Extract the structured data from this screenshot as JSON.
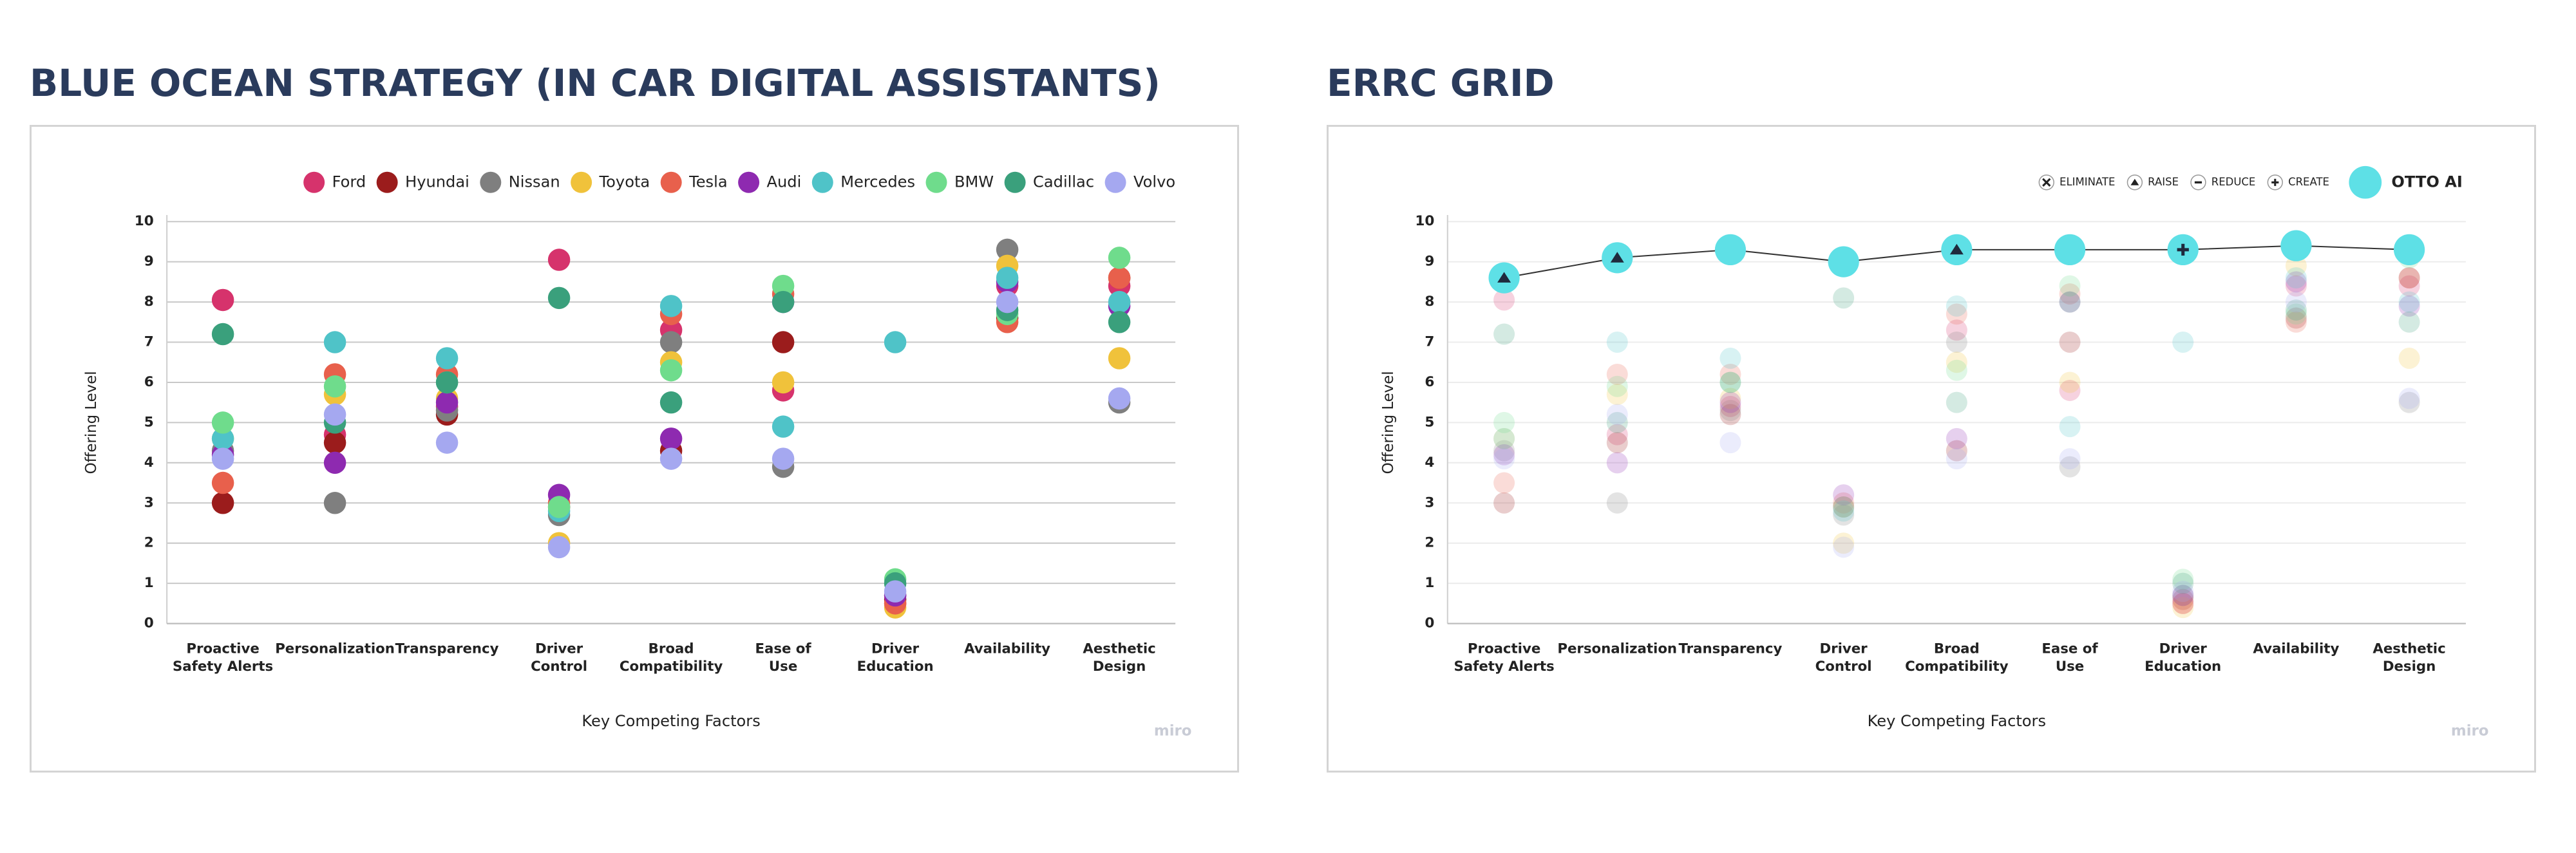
{
  "chart_data": [
    {
      "type": "scatter",
      "title": "BLUE OCEAN STRATEGY (IN CAR DIGITAL ASSISTANTS)",
      "xlabel": "Key Competing Factors",
      "ylabel": "Offering Level",
      "watermark": "miro",
      "categories": [
        "Proactive\nSafety Alerts",
        "Personalization",
        "Transparency",
        "Driver\nControl",
        "Broad\nCompatibility",
        "Ease of\nUse",
        "Driver\nEducation",
        "Availability",
        "Aesthetic\nDesign"
      ],
      "ylim": [
        0,
        10
      ],
      "yticks": [
        0,
        1,
        2,
        3,
        4,
        5,
        6,
        7,
        8,
        9,
        10
      ],
      "grid": true,
      "legend": "top-right",
      "series": [
        {
          "name": "Ford",
          "color": "#d6336c",
          "values": [
            8.05,
            4.7,
            5.4,
            9.05,
            7.3,
            5.8,
            0.5,
            8.4,
            8.4
          ]
        },
        {
          "name": "Hyundai",
          "color": "#9b1c1c",
          "values": [
            3.0,
            4.5,
            5.2,
            2.9,
            4.3,
            7.0,
            0.6,
            7.6,
            8.6
          ]
        },
        {
          "name": "Nissan",
          "color": "#7f7f7f",
          "values": [
            4.3,
            3.0,
            5.3,
            2.7,
            7.0,
            3.9,
            0.7,
            9.3,
            5.5
          ]
        },
        {
          "name": "Toyota",
          "color": "#f0c23b",
          "values": [
            4.6,
            5.7,
            5.6,
            2.0,
            6.5,
            6.0,
            0.4,
            8.9,
            6.6
          ]
        },
        {
          "name": "Tesla",
          "color": "#e8604c",
          "values": [
            3.5,
            6.2,
            6.2,
            3.0,
            7.7,
            8.2,
            0.5,
            7.5,
            8.6
          ]
        },
        {
          "name": "Audi",
          "color": "#8e2ab0",
          "values": [
            4.2,
            4.0,
            5.5,
            3.2,
            4.6,
            8.0,
            0.7,
            8.5,
            7.9
          ]
        },
        {
          "name": "Mercedes",
          "color": "#4fc3c8",
          "values": [
            4.6,
            7.0,
            6.6,
            2.8,
            7.9,
            4.9,
            7.0,
            8.6,
            8.0
          ]
        },
        {
          "name": "BMW",
          "color": "#6fdc8c",
          "values": [
            5.0,
            5.9,
            6.0,
            2.9,
            6.3,
            8.4,
            1.1,
            7.7,
            9.1
          ]
        },
        {
          "name": "Cadillac",
          "color": "#3aa07c",
          "values": [
            7.2,
            5.0,
            6.0,
            8.1,
            5.5,
            8.0,
            1.0,
            7.8,
            7.5
          ]
        },
        {
          "name": "Volvo",
          "color": "#a5a8f0",
          "values": [
            4.1,
            5.2,
            4.5,
            1.9,
            4.1,
            4.1,
            0.8,
            8.0,
            5.6
          ]
        }
      ]
    },
    {
      "type": "scatter",
      "title": "ERRC GRID",
      "xlabel": "Key Competing Factors",
      "ylabel": "Offering Level",
      "watermark": "miro",
      "categories": [
        "Proactive\nSafety Alerts",
        "Personalization",
        "Transparency",
        "Driver\nControl",
        "Broad\nCompatibility",
        "Ease of\nUse",
        "Driver\nEducation",
        "Availability",
        "Aesthetic\nDesign"
      ],
      "ylim": [
        0,
        10
      ],
      "yticks": [
        0,
        1,
        2,
        3,
        4,
        5,
        6,
        7,
        8,
        9,
        10
      ],
      "grid": true,
      "legend": "top-right",
      "faded_competitors": true,
      "action_legend": [
        "ELIMINATE",
        "RAISE",
        "REDUCE",
        "CREATE"
      ],
      "series": [
        {
          "name": "OTTO AI",
          "color": "#5ee0e6",
          "values": [
            8.6,
            9.1,
            9.3,
            9.0,
            9.3,
            9.3,
            9.3,
            9.4,
            9.3
          ],
          "actions": [
            "RAISE",
            "RAISE",
            null,
            null,
            "RAISE",
            null,
            "CREATE",
            null,
            null
          ]
        }
      ]
    }
  ]
}
